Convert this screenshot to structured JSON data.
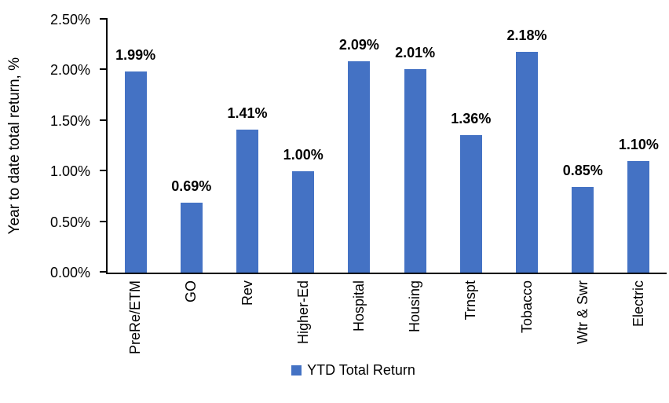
{
  "chart_data": {
    "type": "bar",
    "categories": [
      "PreRe/ETM",
      "GO",
      "Rev",
      "Higher-Ed",
      "Hospital",
      "Housing",
      "Trnspt",
      "Tobacco",
      "Wtr & Swr",
      "Electric"
    ],
    "values": [
      1.99,
      0.69,
      1.41,
      1.0,
      2.09,
      2.01,
      1.36,
      2.18,
      0.85,
      1.1
    ],
    "labels": [
      "1.99%",
      "0.69%",
      "1.41%",
      "1.00%",
      "2.09%",
      "2.01%",
      "1.36%",
      "2.18%",
      "0.85%",
      "1.10%"
    ],
    "title": "",
    "xlabel": "",
    "ylabel": "Year to date total return, %",
    "ylim": [
      0,
      2.5
    ],
    "yticks": [
      "0.00%",
      "0.50%",
      "1.00%",
      "1.50%",
      "2.00%",
      "2.50%"
    ],
    "grid": false,
    "legend": "YTD Total Return",
    "legend_position": "bottom-center",
    "bar_color": "#4472C4",
    "axis_color": "#000000",
    "text_color": "#000000",
    "background_color": "#ffffff"
  }
}
